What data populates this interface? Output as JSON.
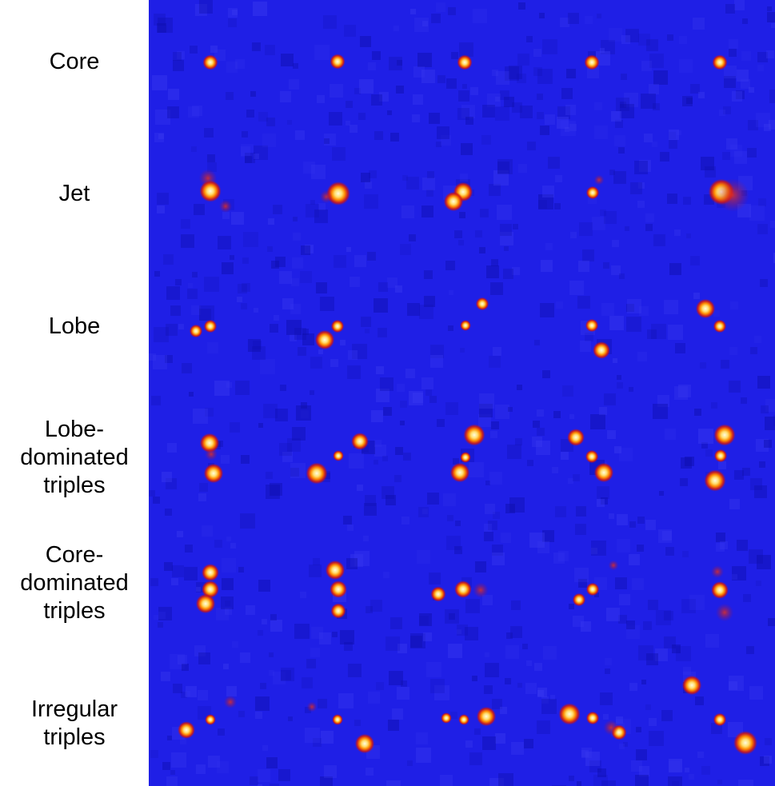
{
  "rows": [
    {
      "id": "core",
      "lines": [
        "Core"
      ]
    },
    {
      "id": "jet",
      "lines": [
        "Jet"
      ]
    },
    {
      "id": "lobe",
      "lines": [
        "Lobe"
      ]
    },
    {
      "id": "lobe-dominated-triples",
      "lines": [
        "Lobe-",
        "dominated",
        "triples"
      ]
    },
    {
      "id": "core-dominated-triples",
      "lines": [
        "Core-",
        "dominated",
        "triples"
      ]
    },
    {
      "id": "irregular-triples",
      "lines": [
        "Irregular",
        "triples"
      ]
    }
  ],
  "colors": {
    "background": "#1f1fe6",
    "noise_dark": "#0d0da8",
    "noise_light": "#3a3af0",
    "glow": "#e01a10",
    "mid": "#ff8a00",
    "core": "#fff4c8"
  }
}
